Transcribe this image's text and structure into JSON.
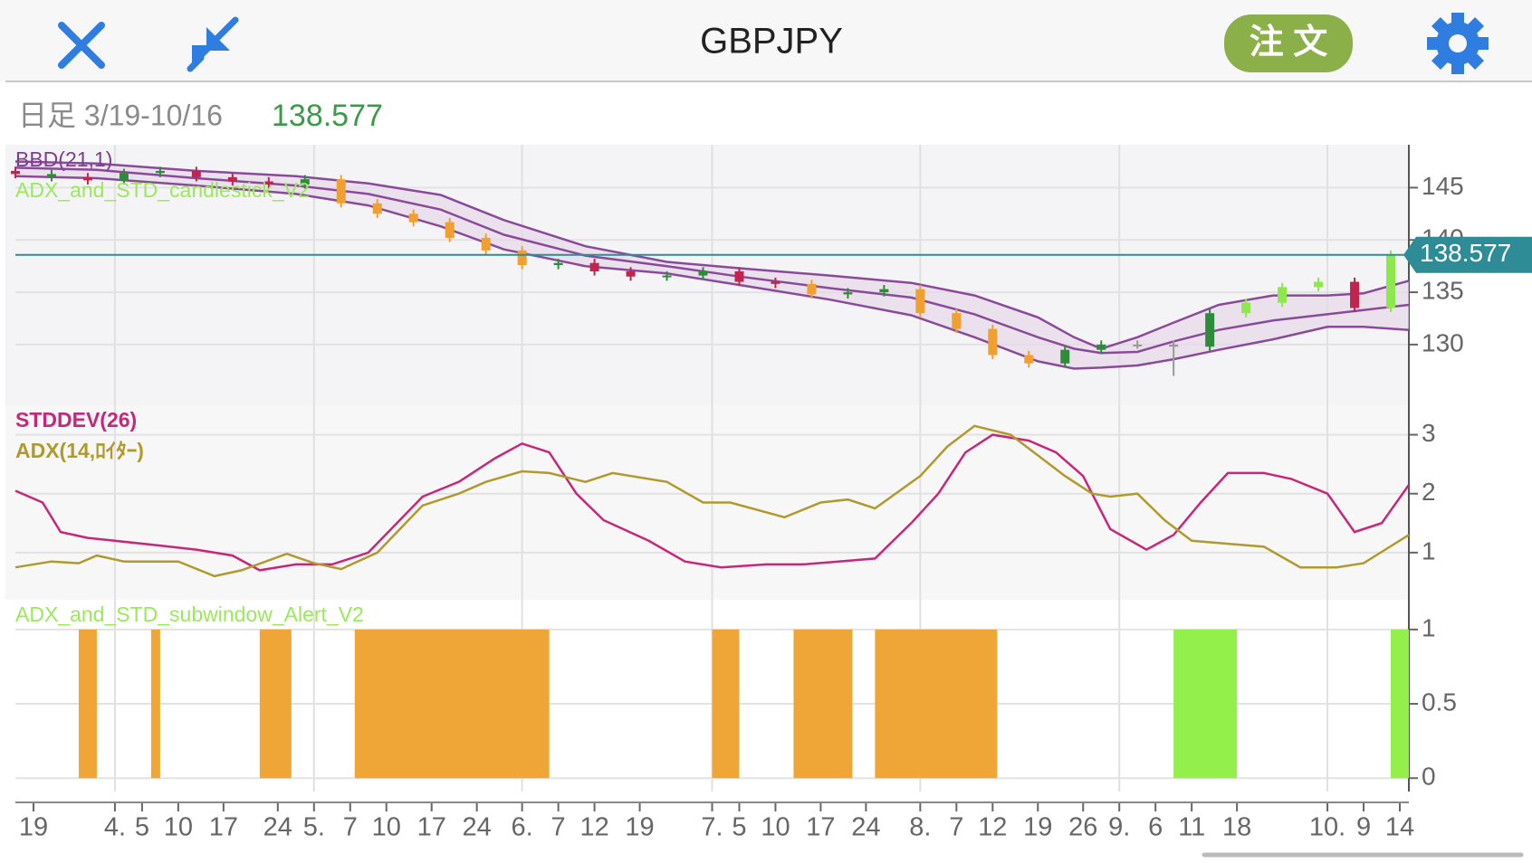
{
  "header": {
    "title": "GBPJPY",
    "order_button": "注 文"
  },
  "info": {
    "period": "日足 3/19-10/16",
    "price": "138.577"
  },
  "chart_data": [
    {
      "type": "candlestick",
      "indicator_labels": [
        "BBD(21,1)",
        "ADX_and_STD_candlestick_V2"
      ],
      "label_colors": [
        "#7b3f8f",
        "#9be85a"
      ],
      "xlim": [
        0,
        154
      ],
      "ylim": [
        124.2,
        149.1
      ],
      "yticks": [
        130,
        135,
        140,
        145
      ],
      "last_price": 138.577,
      "last_price_color": "#2e8c96",
      "candles": {
        "x": [
          0,
          4,
          8,
          12,
          16,
          20,
          24,
          28,
          32,
          36,
          40,
          44,
          48,
          52,
          56,
          60,
          64,
          68,
          72,
          76,
          80,
          84,
          88,
          92,
          96,
          100,
          104,
          108,
          112,
          116,
          120,
          124,
          128,
          132,
          136,
          140,
          144,
          148,
          152
        ],
        "open": [
          146.6,
          146.3,
          146.0,
          145.7,
          146.4,
          146.6,
          146.0,
          145.6,
          145.3,
          145.8,
          143.5,
          142.5,
          141.7,
          140.2,
          139.0,
          137.6,
          137.8,
          137.0,
          136.5,
          136.6,
          137.0,
          136.0,
          135.8,
          134.8,
          135.0,
          135.3,
          133.0,
          131.5,
          129.0,
          128.2,
          129.5,
          130.0,
          130.0,
          129.8,
          133.0,
          134.0,
          135.5,
          136.0,
          133.5
        ],
        "high": [
          147.0,
          146.7,
          146.4,
          146.8,
          147.0,
          147.0,
          146.4,
          146.0,
          146.2,
          146.2,
          143.9,
          142.9,
          142.1,
          140.6,
          139.4,
          138.2,
          138.2,
          137.4,
          137.0,
          137.4,
          137.4,
          136.4,
          136.2,
          135.4,
          135.7,
          135.7,
          133.4,
          131.9,
          129.4,
          129.9,
          130.4,
          130.4,
          130.4,
          133.4,
          134.4,
          135.9,
          136.4,
          136.4,
          139.0
        ],
        "low": [
          145.9,
          145.6,
          145.3,
          145.3,
          146.0,
          145.6,
          145.2,
          144.9,
          144.9,
          143.1,
          142.1,
          141.3,
          139.8,
          138.6,
          137.2,
          137.2,
          136.6,
          136.1,
          136.1,
          136.2,
          135.6,
          135.4,
          134.4,
          134.4,
          134.6,
          132.6,
          131.1,
          128.6,
          127.8,
          127.8,
          129.1,
          129.6,
          127.0,
          129.4,
          132.6,
          133.6,
          135.1,
          133.1,
          133.1
        ],
        "close": [
          146.3,
          146.0,
          145.7,
          146.4,
          146.6,
          146.0,
          145.6,
          145.3,
          145.8,
          143.5,
          142.5,
          141.7,
          140.2,
          139.0,
          137.6,
          137.8,
          137.0,
          136.5,
          136.6,
          137.0,
          136.0,
          135.8,
          134.8,
          135.0,
          135.3,
          133.0,
          131.5,
          129.0,
          128.2,
          129.5,
          130.0,
          130.0,
          129.8,
          133.0,
          134.0,
          135.5,
          136.0,
          133.5,
          138.6
        ],
        "colors": [
          "#c0244f",
          "#2e8b3c",
          "#c0244f",
          "#2e8b3c",
          "#2e8b3c",
          "#c0244f",
          "#c0244f",
          "#c0244f",
          "#2e8b3c",
          "#f0a030",
          "#f0a030",
          "#f0a030",
          "#f0a030",
          "#f0a030",
          "#f0a030",
          "#2e8b3c",
          "#c0244f",
          "#c0244f",
          "#2e8b3c",
          "#2e8b3c",
          "#c0244f",
          "#c0244f",
          "#f0a030",
          "#2e8b3c",
          "#2e8b3c",
          "#f0a030",
          "#f0a030",
          "#f0a030",
          "#f0a030",
          "#2e8b3c",
          "#2e8b3c",
          "#999999",
          "#999999",
          "#2e8b3c",
          "#8ce84c",
          "#8ce84c",
          "#8ce84c",
          "#c0244f",
          "#8ce84c"
        ]
      },
      "bands": {
        "x": [
          0,
          9,
          20,
          31,
          39,
          47,
          54,
          63,
          72,
          80,
          90,
          99,
          106,
          113,
          117,
          120,
          124,
          128,
          133,
          139,
          145,
          149,
          154
        ],
        "color": "#8a4a9a",
        "fill": "#e6d9ea",
        "upper": [
          147.5,
          147.3,
          146.6,
          146.1,
          145.4,
          144.3,
          141.9,
          139.4,
          137.9,
          137.3,
          136.6,
          135.9,
          134.7,
          132.6,
          130.7,
          129.6,
          130.7,
          132.1,
          133.8,
          134.7,
          134.7,
          134.9,
          136.1
        ],
        "middle": [
          146.9,
          146.7,
          145.9,
          145.2,
          144.4,
          142.9,
          140.5,
          138.5,
          137.5,
          136.5,
          135.4,
          134.5,
          132.9,
          130.7,
          129.6,
          129.2,
          129.3,
          130.3,
          131.4,
          132.3,
          132.9,
          133.3,
          133.8
        ],
        "lower": [
          146.1,
          145.9,
          145.2,
          144.4,
          143.3,
          141.3,
          139.1,
          137.5,
          136.8,
          135.7,
          134.3,
          132.8,
          130.7,
          128.4,
          127.7,
          127.8,
          128.0,
          128.6,
          129.5,
          130.5,
          131.7,
          131.7,
          131.4
        ]
      }
    },
    {
      "type": "line",
      "xlim": [
        0,
        154
      ],
      "ylim": [
        0.2,
        3.5
      ],
      "yticks": [
        1,
        2,
        3
      ],
      "series": [
        {
          "name": "STDDEV(26)",
          "color": "#c5287a",
          "x": [
            0,
            3,
            5,
            8,
            11,
            16,
            20,
            24,
            27,
            31,
            35,
            39,
            45,
            49,
            53,
            56,
            59,
            62,
            65,
            70,
            74,
            78,
            83,
            87,
            91,
            95,
            99,
            102,
            105,
            108,
            112,
            115,
            118,
            121,
            125,
            128,
            131,
            134,
            138,
            141,
            145,
            148,
            151,
            154
          ],
          "values": [
            2.05,
            1.85,
            1.35,
            1.25,
            1.2,
            1.12,
            1.05,
            0.95,
            0.7,
            0.8,
            0.8,
            1.0,
            1.95,
            2.2,
            2.6,
            2.85,
            2.7,
            2.0,
            1.55,
            1.2,
            0.85,
            0.75,
            0.8,
            0.8,
            0.85,
            0.9,
            1.5,
            2.0,
            2.7,
            3.0,
            2.9,
            2.7,
            2.3,
            1.4,
            1.05,
            1.3,
            1.85,
            2.35,
            2.35,
            2.25,
            2.0,
            1.35,
            1.5,
            2.15
          ]
        },
        {
          "name": "ADX(14,ﾛｲﾀｰ)",
          "color": "#b09a2e",
          "x": [
            0,
            4,
            7,
            9,
            12,
            18,
            22,
            25,
            30,
            33,
            36,
            40,
            45,
            49,
            52,
            56,
            59,
            63,
            66,
            72,
            76,
            79,
            85,
            89,
            92,
            95,
            100,
            103,
            106,
            110,
            113,
            116,
            119,
            121,
            124,
            127,
            130,
            134,
            138,
            142,
            146,
            149,
            154
          ],
          "values": [
            0.75,
            0.85,
            0.82,
            0.95,
            0.85,
            0.85,
            0.6,
            0.7,
            0.98,
            0.82,
            0.72,
            1.0,
            1.8,
            2.0,
            2.2,
            2.38,
            2.35,
            2.2,
            2.35,
            2.2,
            1.85,
            1.85,
            1.6,
            1.85,
            1.9,
            1.75,
            2.3,
            2.8,
            3.15,
            3.0,
            2.65,
            2.3,
            2.0,
            1.95,
            2.0,
            1.55,
            1.2,
            1.15,
            1.1,
            0.75,
            0.75,
            0.82,
            1.3
          ]
        }
      ]
    },
    {
      "type": "bar",
      "indicator_labels": [
        "ADX_and_STD_subwindow_Alert_V2"
      ],
      "label_colors": [
        "#9be85a"
      ],
      "xlim": [
        0,
        154
      ],
      "ylim": [
        -0.09,
        1.2
      ],
      "yticks": [
        0,
        0.5,
        1
      ],
      "x0": [
        7,
        15,
        27,
        37.5,
        77,
        86,
        95,
        128,
        152
      ],
      "x1": [
        9,
        16,
        30.5,
        59,
        80,
        92.5,
        108.5,
        135,
        154
      ],
      "values": [
        1,
        1,
        1,
        1,
        1,
        1,
        1,
        1,
        1
      ],
      "colors": [
        "#f0a636",
        "#f0a636",
        "#f0a636",
        "#f0a636",
        "#f0a636",
        "#f0a636",
        "#f0a636",
        "#93ef4a",
        "#93ef4a"
      ],
      "xticks": [
        {
          "value": 2,
          "label": "19"
        },
        {
          "value": 11,
          "label": "4."
        },
        {
          "value": 14,
          "label": "5"
        },
        {
          "value": 18,
          "label": "10"
        },
        {
          "value": 23,
          "label": "17"
        },
        {
          "value": 29,
          "label": "24"
        },
        {
          "value": 33,
          "label": "5."
        },
        {
          "value": 37,
          "label": "7"
        },
        {
          "value": 41,
          "label": "10"
        },
        {
          "value": 46,
          "label": "17"
        },
        {
          "value": 51,
          "label": "24"
        },
        {
          "value": 56,
          "label": "6."
        },
        {
          "value": 60,
          "label": "7"
        },
        {
          "value": 64,
          "label": "12"
        },
        {
          "value": 69,
          "label": "19"
        },
        {
          "value": 77,
          "label": "7."
        },
        {
          "value": 80,
          "label": "5"
        },
        {
          "value": 84,
          "label": "10"
        },
        {
          "value": 89,
          "label": "17"
        },
        {
          "value": 94,
          "label": "24"
        },
        {
          "value": 100,
          "label": "8."
        },
        {
          "value": 104,
          "label": "7"
        },
        {
          "value": 108,
          "label": "12"
        },
        {
          "value": 113,
          "label": "19"
        },
        {
          "value": 118,
          "label": "26"
        },
        {
          "value": 122,
          "label": "9."
        },
        {
          "value": 126,
          "label": "6"
        },
        {
          "value": 130,
          "label": "11"
        },
        {
          "value": 135,
          "label": "18"
        },
        {
          "value": 145,
          "label": "10."
        },
        {
          "value": 149,
          "label": "9"
        },
        {
          "value": 153,
          "label": "14"
        }
      ]
    }
  ]
}
